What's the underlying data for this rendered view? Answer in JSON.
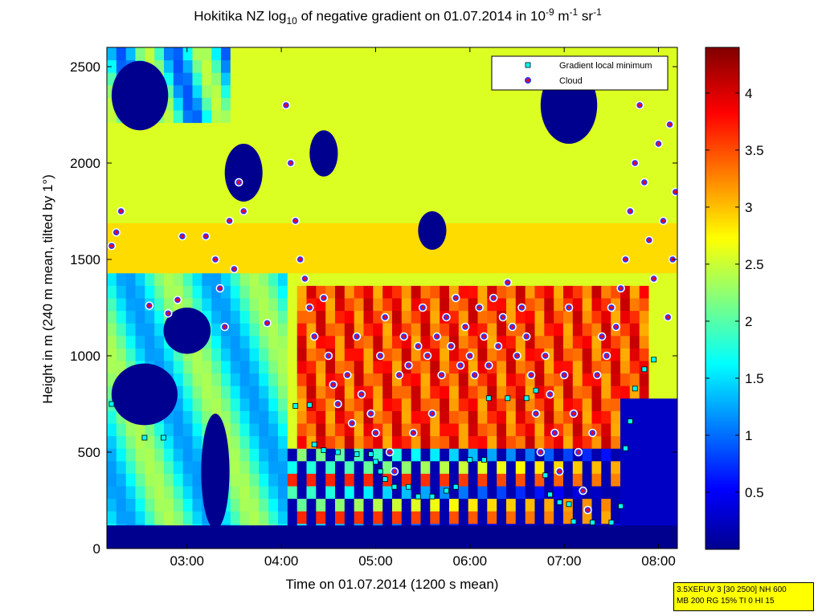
{
  "title": {
    "main": "Hokitika NZ log",
    "sub": "10",
    "mid": " of negative gradient on 01.07.2014 in 10",
    "sup1": "-9",
    "m": " m",
    "sup2": "-1",
    "sr": " sr",
    "sup3": "-1"
  },
  "chart_data": {
    "type": "heatmap",
    "xlabel": "Time on 01.07.2014 (1200 s mean)",
    "ylabel": "Height in m (240 m mean, tilted by 1°)",
    "x_ticks": [
      "03:00",
      "04:00",
      "05:00",
      "06:00",
      "07:00",
      "08:00"
    ],
    "x_tick_hours": [
      3,
      4,
      5,
      6,
      7,
      8
    ],
    "xlim_hours": [
      2.15,
      8.2
    ],
    "y_ticks": [
      0,
      500,
      1000,
      1500,
      2000,
      2500
    ],
    "ylim": [
      0,
      2600
    ],
    "colorbar": {
      "ticks": [
        0.5,
        1,
        1.5,
        2,
        2.5,
        3,
        3.5,
        4
      ],
      "range": [
        0,
        4.4
      ],
      "colormap": "jet"
    },
    "legend": {
      "placement": "top-right",
      "entries": [
        {
          "label": "Gradient local minimum",
          "marker": "square",
          "color": "#00ffff"
        },
        {
          "label": "Cloud",
          "marker": "circle",
          "color": "#ff0000"
        }
      ]
    },
    "gradient_local_minimum": [
      {
        "t": 2.2,
        "h": 750
      },
      {
        "t": 2.55,
        "h": 575
      },
      {
        "t": 2.75,
        "h": 575
      },
      {
        "t": 4.15,
        "h": 740
      },
      {
        "t": 4.3,
        "h": 745
      },
      {
        "t": 4.35,
        "h": 540
      },
      {
        "t": 4.45,
        "h": 510
      },
      {
        "t": 4.6,
        "h": 500
      },
      {
        "t": 4.8,
        "h": 490
      },
      {
        "t": 4.95,
        "h": 490
      },
      {
        "t": 5.0,
        "h": 450
      },
      {
        "t": 5.05,
        "h": 400
      },
      {
        "t": 5.1,
        "h": 360
      },
      {
        "t": 5.2,
        "h": 320
      },
      {
        "t": 5.35,
        "h": 320
      },
      {
        "t": 5.45,
        "h": 270
      },
      {
        "t": 5.6,
        "h": 270
      },
      {
        "t": 5.75,
        "h": 300
      },
      {
        "t": 5.85,
        "h": 320
      },
      {
        "t": 6.0,
        "h": 460
      },
      {
        "t": 6.15,
        "h": 460
      },
      {
        "t": 6.2,
        "h": 780
      },
      {
        "t": 6.4,
        "h": 780
      },
      {
        "t": 6.6,
        "h": 780
      },
      {
        "t": 6.7,
        "h": 820
      },
      {
        "t": 6.8,
        "h": 380
      },
      {
        "t": 6.85,
        "h": 280
      },
      {
        "t": 6.95,
        "h": 240
      },
      {
        "t": 7.05,
        "h": 230
      },
      {
        "t": 7.1,
        "h": 140
      },
      {
        "t": 7.3,
        "h": 135
      },
      {
        "t": 7.5,
        "h": 135
      },
      {
        "t": 7.6,
        "h": 220
      },
      {
        "t": 7.65,
        "h": 520
      },
      {
        "t": 7.7,
        "h": 660
      },
      {
        "t": 7.75,
        "h": 830
      },
      {
        "t": 7.85,
        "h": 930
      },
      {
        "t": 7.95,
        "h": 980
      }
    ],
    "cloud": [
      {
        "t": 2.2,
        "h": 1570
      },
      {
        "t": 2.25,
        "h": 1640
      },
      {
        "t": 2.3,
        "h": 1750
      },
      {
        "t": 2.6,
        "h": 1260
      },
      {
        "t": 2.8,
        "h": 1220
      },
      {
        "t": 2.9,
        "h": 1290
      },
      {
        "t": 2.95,
        "h": 1620
      },
      {
        "t": 3.2,
        "h": 1620
      },
      {
        "t": 3.3,
        "h": 1500
      },
      {
        "t": 3.35,
        "h": 1350
      },
      {
        "t": 3.4,
        "h": 1150
      },
      {
        "t": 3.45,
        "h": 1700
      },
      {
        "t": 3.55,
        "h": 1900
      },
      {
        "t": 3.6,
        "h": 1750
      },
      {
        "t": 3.5,
        "h": 1450
      },
      {
        "t": 3.85,
        "h": 1170
      },
      {
        "t": 4.05,
        "h": 2300
      },
      {
        "t": 4.1,
        "h": 2000
      },
      {
        "t": 4.15,
        "h": 1700
      },
      {
        "t": 4.2,
        "h": 1500
      },
      {
        "t": 4.25,
        "h": 1400
      },
      {
        "t": 4.3,
        "h": 1250
      },
      {
        "t": 4.35,
        "h": 1100
      },
      {
        "t": 4.45,
        "h": 1300
      },
      {
        "t": 4.5,
        "h": 1000
      },
      {
        "t": 4.55,
        "h": 850
      },
      {
        "t": 4.6,
        "h": 750
      },
      {
        "t": 4.7,
        "h": 900
      },
      {
        "t": 4.75,
        "h": 650
      },
      {
        "t": 4.8,
        "h": 1100
      },
      {
        "t": 4.85,
        "h": 800
      },
      {
        "t": 4.95,
        "h": 700
      },
      {
        "t": 5.0,
        "h": 600
      },
      {
        "t": 5.05,
        "h": 1000
      },
      {
        "t": 5.1,
        "h": 1200
      },
      {
        "t": 5.15,
        "h": 500
      },
      {
        "t": 5.2,
        "h": 400
      },
      {
        "t": 5.25,
        "h": 900
      },
      {
        "t": 5.3,
        "h": 1100
      },
      {
        "t": 5.35,
        "h": 950
      },
      {
        "t": 5.4,
        "h": 600
      },
      {
        "t": 5.45,
        "h": 1050
      },
      {
        "t": 5.5,
        "h": 1250
      },
      {
        "t": 5.55,
        "h": 1000
      },
      {
        "t": 5.6,
        "h": 700
      },
      {
        "t": 5.65,
        "h": 1100
      },
      {
        "t": 5.7,
        "h": 900
      },
      {
        "t": 5.75,
        "h": 1200
      },
      {
        "t": 5.8,
        "h": 1050
      },
      {
        "t": 5.85,
        "h": 1300
      },
      {
        "t": 5.9,
        "h": 950
      },
      {
        "t": 5.95,
        "h": 1150
      },
      {
        "t": 6.0,
        "h": 1000
      },
      {
        "t": 6.05,
        "h": 900
      },
      {
        "t": 6.1,
        "h": 1250
      },
      {
        "t": 6.15,
        "h": 1100
      },
      {
        "t": 6.2,
        "h": 950
      },
      {
        "t": 6.25,
        "h": 1300
      },
      {
        "t": 6.3,
        "h": 1050
      },
      {
        "t": 6.35,
        "h": 1200
      },
      {
        "t": 6.4,
        "h": 1380
      },
      {
        "t": 6.45,
        "h": 1150
      },
      {
        "t": 6.5,
        "h": 1000
      },
      {
        "t": 6.55,
        "h": 1250
      },
      {
        "t": 6.6,
        "h": 1100
      },
      {
        "t": 6.65,
        "h": 900
      },
      {
        "t": 6.7,
        "h": 700
      },
      {
        "t": 6.75,
        "h": 500
      },
      {
        "t": 6.8,
        "h": 1000
      },
      {
        "t": 6.85,
        "h": 800
      },
      {
        "t": 6.9,
        "h": 600
      },
      {
        "t": 6.95,
        "h": 400
      },
      {
        "t": 7.0,
        "h": 900
      },
      {
        "t": 7.05,
        "h": 1250
      },
      {
        "t": 7.1,
        "h": 700
      },
      {
        "t": 7.15,
        "h": 500
      },
      {
        "t": 7.2,
        "h": 300
      },
      {
        "t": 7.25,
        "h": 200
      },
      {
        "t": 7.3,
        "h": 600
      },
      {
        "t": 7.35,
        "h": 900
      },
      {
        "t": 7.4,
        "h": 1100
      },
      {
        "t": 7.45,
        "h": 1000
      },
      {
        "t": 7.5,
        "h": 1250
      },
      {
        "t": 7.55,
        "h": 1150
      },
      {
        "t": 7.6,
        "h": 1350
      },
      {
        "t": 7.65,
        "h": 1500
      },
      {
        "t": 7.7,
        "h": 1750
      },
      {
        "t": 7.75,
        "h": 2000
      },
      {
        "t": 7.8,
        "h": 2300
      },
      {
        "t": 7.85,
        "h": 1900
      },
      {
        "t": 7.9,
        "h": 1600
      },
      {
        "t": 7.95,
        "h": 1400
      },
      {
        "t": 8.0,
        "h": 2100
      },
      {
        "t": 8.05,
        "h": 1700
      },
      {
        "t": 8.1,
        "h": 1200
      },
      {
        "t": 8.12,
        "h": 2200
      },
      {
        "t": 8.15,
        "h": 1500
      },
      {
        "t": 8.18,
        "h": 1850
      }
    ]
  },
  "info_box": {
    "line1": "3.5XEFUV 3 [30 2500] NH 600",
    "line2": "MB 200 RG 15% TI 0 HI 15"
  }
}
